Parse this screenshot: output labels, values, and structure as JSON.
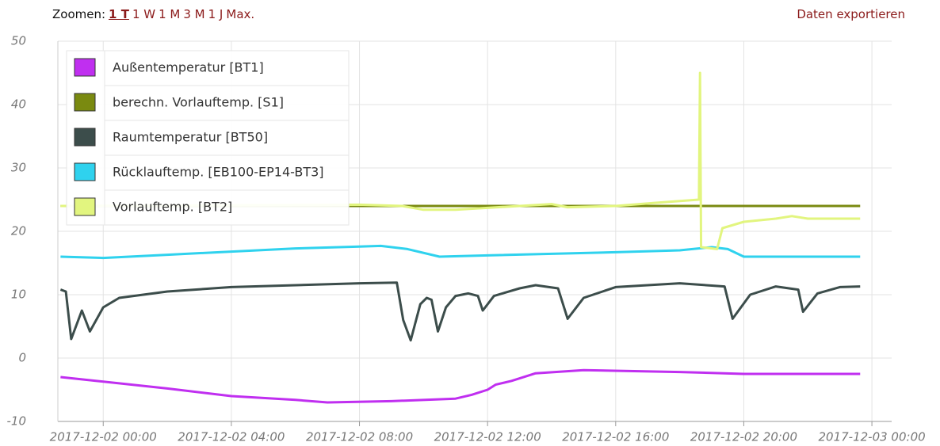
{
  "toolbar": {
    "label": "Zoomen:",
    "links": [
      "1 T",
      "1 W",
      "1 M",
      "3 M",
      "1 J",
      "Max."
    ],
    "export": "Daten exportieren"
  },
  "chart_data": {
    "type": "line",
    "xlim": [
      "2017-12-01 22:35",
      "2017-12-03 00:37"
    ],
    "xticks": [
      "2017-12-02 00:00",
      "2017-12-02 04:00",
      "2017-12-02 08:00",
      "2017-12-02 12:00",
      "2017-12-02 16:00",
      "2017-12-02 20:00",
      "2017-12-03 00:00"
    ],
    "ylim": [
      -10,
      50
    ],
    "yticks": [
      -10,
      0,
      10,
      20,
      30,
      40,
      50
    ],
    "grid": true,
    "legend": "top-left",
    "series": [
      {
        "name": "Außentemperatur [BT1]",
        "color": "#c02ff0",
        "x": [
          "2017-12-01 22:40",
          "2017-12-02 02:00",
          "2017-12-02 04:00",
          "2017-12-02 06:00",
          "2017-12-02 07:00",
          "2017-12-02 09:00",
          "2017-12-02 11:00",
          "2017-12-02 11:30",
          "2017-12-02 12:00",
          "2017-12-02 12:15",
          "2017-12-02 12:45",
          "2017-12-02 13:30",
          "2017-12-02 15:00",
          "2017-12-02 18:00",
          "2017-12-02 20:00",
          "2017-12-02 23:38"
        ],
        "values": [
          -3.0,
          -4.8,
          -6.0,
          -6.6,
          -7.0,
          -6.8,
          -6.4,
          -5.8,
          -5.0,
          -4.2,
          -3.6,
          -2.4,
          -1.9,
          -2.2,
          -2.5,
          -2.5
        ]
      },
      {
        "name": "berechn. Vorlauftemp. [S1]",
        "color": "#7a8a10",
        "x": [
          "2017-12-01 22:40",
          "2017-12-02 23:38"
        ],
        "values": [
          24,
          24
        ]
      },
      {
        "name": "Raumtemperatur [BT50]",
        "color": "#3c4d4b",
        "x": [
          "2017-12-01 22:40",
          "2017-12-01 22:50",
          "2017-12-01 23:00",
          "2017-12-01 23:20",
          "2017-12-01 23:35",
          "2017-12-02 00:00",
          "2017-12-02 00:30",
          "2017-12-02 02:00",
          "2017-12-02 04:00",
          "2017-12-02 08:00",
          "2017-12-02 09:10",
          "2017-12-02 09:22",
          "2017-12-02 09:36",
          "2017-12-02 09:54",
          "2017-12-02 10:06",
          "2017-12-02 10:15",
          "2017-12-02 10:27",
          "2017-12-02 10:42",
          "2017-12-02 11:00",
          "2017-12-02 11:24",
          "2017-12-02 11:42",
          "2017-12-02 11:51",
          "2017-12-02 12:12",
          "2017-12-02 13:00",
          "2017-12-02 13:30",
          "2017-12-02 14:12",
          "2017-12-02 14:30",
          "2017-12-02 15:00",
          "2017-12-02 16:00",
          "2017-12-02 18:00",
          "2017-12-02 19:24",
          "2017-12-02 19:39",
          "2017-12-02 20:12",
          "2017-12-02 21:00",
          "2017-12-02 21:42",
          "2017-12-02 21:51",
          "2017-12-02 22:18",
          "2017-12-02 23:00",
          "2017-12-02 23:38"
        ],
        "values": [
          10.8,
          10.5,
          3.0,
          7.5,
          4.2,
          8.0,
          9.5,
          10.5,
          11.2,
          11.8,
          11.9,
          6.0,
          2.8,
          8.5,
          9.5,
          9.2,
          4.2,
          8.0,
          9.8,
          10.2,
          9.8,
          7.5,
          9.8,
          11.0,
          11.5,
          11.0,
          6.2,
          9.5,
          11.2,
          11.8,
          11.3,
          6.2,
          10.0,
          11.3,
          10.8,
          7.3,
          10.2,
          11.2,
          11.3
        ]
      },
      {
        "name": "Rücklauftemp. [EB100-EP14-BT3]",
        "color": "#2fd2ee",
        "x": [
          "2017-12-01 22:40",
          "2017-12-02 00:00",
          "2017-12-02 02:00",
          "2017-12-02 04:00",
          "2017-12-02 06:00",
          "2017-12-02 08:00",
          "2017-12-02 08:40",
          "2017-12-02 09:30",
          "2017-12-02 10:30",
          "2017-12-02 12:00",
          "2017-12-02 16:00",
          "2017-12-02 18:00",
          "2017-12-02 19:00",
          "2017-12-02 19:30",
          "2017-12-02 20:00",
          "2017-12-02 23:38"
        ],
        "values": [
          16.0,
          15.8,
          16.3,
          16.8,
          17.3,
          17.6,
          17.7,
          17.2,
          16.0,
          16.2,
          16.7,
          17.0,
          17.5,
          17.2,
          16.0,
          16.0
        ]
      },
      {
        "name": "Vorlauftemp. [BT2]",
        "color": "#e2f57f",
        "x": [
          "2017-12-01 22:40",
          "2017-12-02 08:00",
          "2017-12-02 09:20",
          "2017-12-02 10:00",
          "2017-12-02 11:00",
          "2017-12-02 13:00",
          "2017-12-02 14:00",
          "2017-12-02 14:30",
          "2017-12-02 16:00",
          "2017-12-02 17:30",
          "2017-12-02 18:36",
          "2017-12-02 18:38",
          "2017-12-02 18:40",
          "2017-12-02 19:10",
          "2017-12-02 19:20",
          "2017-12-02 20:00",
          "2017-12-02 21:00",
          "2017-12-02 21:30",
          "2017-12-02 22:00",
          "2017-12-02 23:38"
        ],
        "values": [
          24.0,
          24.2,
          24.0,
          23.4,
          23.4,
          24.0,
          24.3,
          23.8,
          24.0,
          24.6,
          25.0,
          45.0,
          17.5,
          17.2,
          20.5,
          21.5,
          22.0,
          22.4,
          22.0,
          22.0
        ]
      }
    ]
  }
}
